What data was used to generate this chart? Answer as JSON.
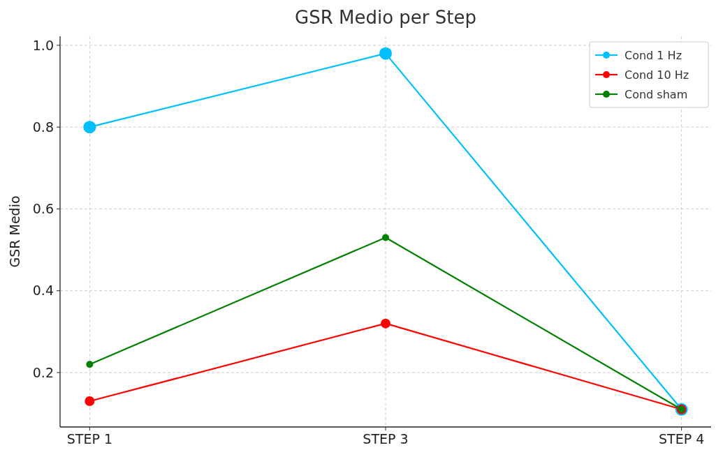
{
  "chart_data": {
    "type": "line",
    "title": "GSR Medio per Step",
    "ylabel": "GSR Medio",
    "categories": [
      "STEP 1",
      "STEP 3",
      "STEP 4"
    ],
    "series": [
      {
        "name": "Cond 1 Hz",
        "color": "#00bfff",
        "values": [
          0.8,
          0.98,
          0.11
        ]
      },
      {
        "name": "Cond 10 Hz",
        "color": "#ff0000",
        "values": [
          0.13,
          0.32,
          0.11
        ]
      },
      {
        "name": "Cond sham",
        "color": "#008000",
        "values": [
          0.22,
          0.53,
          0.11
        ]
      }
    ],
    "ylim": [
      0.067,
      1.022
    ],
    "yticks": [
      {
        "value": 0.2,
        "label": "0.2"
      },
      {
        "value": 0.4,
        "label": "0.4"
      },
      {
        "value": 0.6,
        "label": "0.6"
      },
      {
        "value": 0.8,
        "label": "0.8"
      },
      {
        "value": 1.0,
        "label": "1.0"
      }
    ],
    "grid": true,
    "legend": "top right",
    "marker": "circle",
    "line_style": "solid"
  }
}
